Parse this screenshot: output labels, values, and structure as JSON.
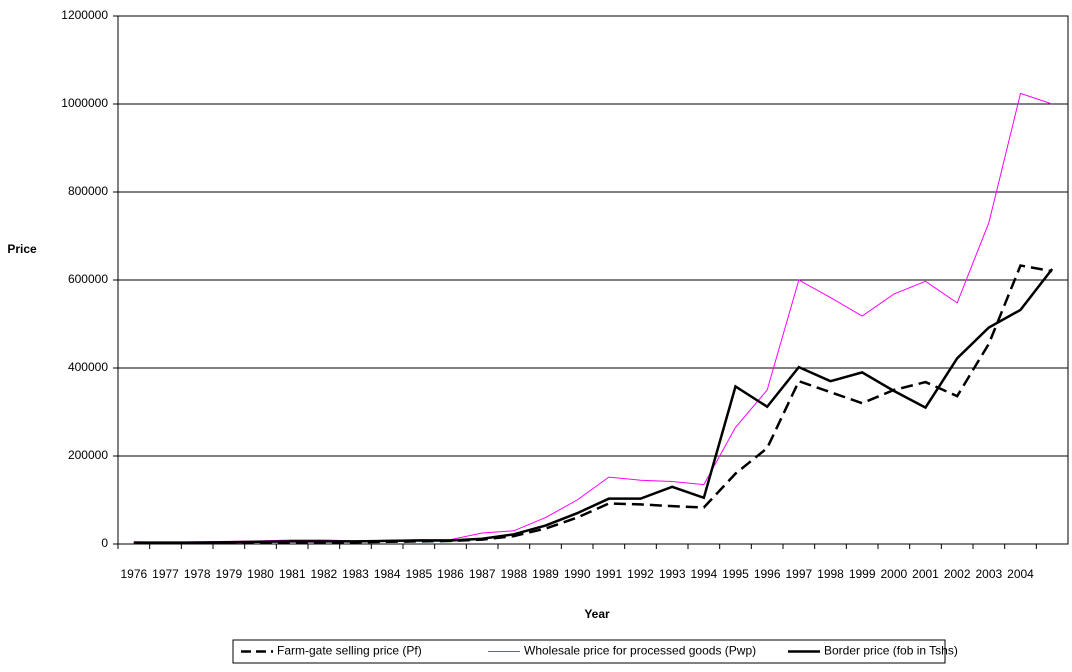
{
  "chart_data": {
    "type": "line",
    "x_label": "Year",
    "y_label": "Price",
    "categories": [
      "1976",
      "1977",
      "1978",
      "1979",
      "1980",
      "1981",
      "1982",
      "1983",
      "1984",
      "1985",
      "1986",
      "1987",
      "1988",
      "1989",
      "1990",
      "1991",
      "1992",
      "1993",
      "1994",
      "1995",
      "1996",
      "1997",
      "1998",
      "1999",
      "2000",
      "2001",
      "2002",
      "2003",
      "2004",
      null
    ],
    "series": [
      {
        "name": "Farm-gate selling price (Pf)",
        "color": "#000000",
        "dashed": true,
        "width": 2.5,
        "values": [
          2000,
          2000,
          3000,
          3000,
          4000,
          4000,
          4000,
          4000,
          5000,
          6000,
          7000,
          10000,
          18000,
          35000,
          60000,
          92000,
          90000,
          86000,
          83000,
          160000,
          218000,
          370000,
          345000,
          320000,
          350000,
          368000,
          336000,
          455000,
          633000,
          620000
        ]
      },
      {
        "name": "Wholesale price for processed goods (Pwp)",
        "color": "#ff00ff",
        "dashed": false,
        "width": 1,
        "values": [
          5000,
          4000,
          5000,
          6000,
          7000,
          9000,
          9000,
          7000,
          8000,
          10000,
          10000,
          25000,
          30000,
          60000,
          100000,
          152000,
          145000,
          142000,
          135000,
          265000,
          350000,
          600000,
          560000,
          518000,
          568000,
          597000,
          548000,
          730000,
          1024000,
          1000000
        ]
      },
      {
        "name": "Border price (fob in Tshs)",
        "color": "#000000",
        "dashed": false,
        "width": 2.5,
        "values": [
          3000,
          3000,
          3000,
          4000,
          5000,
          6000,
          6000,
          6000,
          7000,
          8000,
          8000,
          12000,
          22000,
          42000,
          70000,
          103000,
          103000,
          130000,
          105000,
          358000,
          312000,
          402000,
          370000,
          390000,
          348000,
          310000,
          422000,
          492000,
          532000,
          625000
        ]
      }
    ],
    "ylim": [
      0,
      1200000
    ],
    "yticks": [
      0,
      200000,
      400000,
      600000,
      800000,
      1000000,
      1200000
    ],
    "grid": true,
    "legend": "bottom"
  }
}
